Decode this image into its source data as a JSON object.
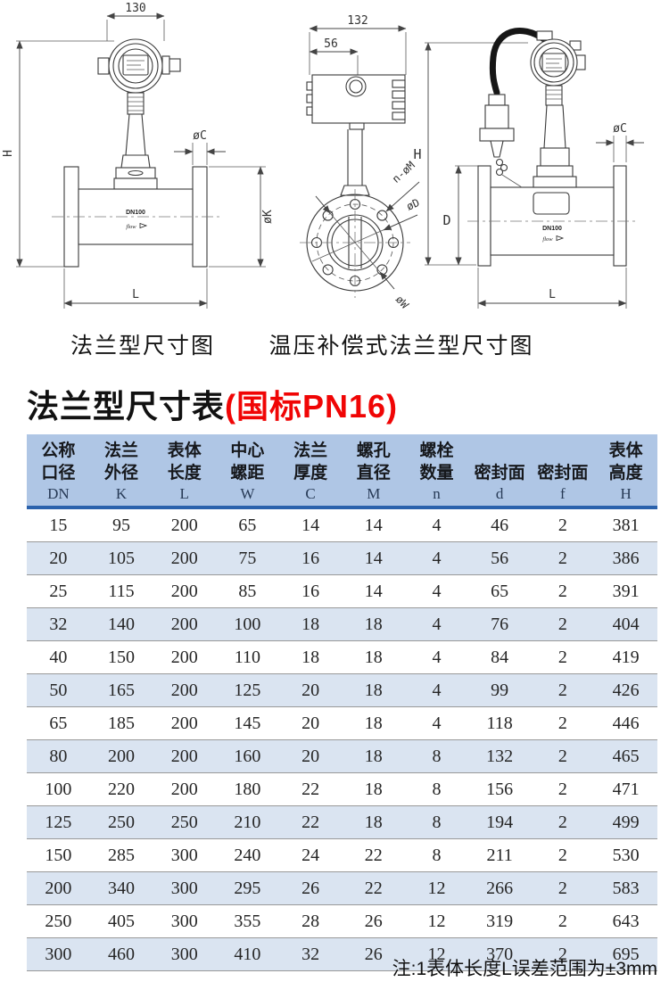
{
  "drawings": {
    "flange_view": {
      "caption": "法兰型尺寸图",
      "dim_width": "130",
      "dim_height": "H",
      "dim_flange_thickness": "øC",
      "dim_flange_od": "øK",
      "dim_length": "L",
      "body_label": "DN100",
      "flow_label": "flow"
    },
    "front_view": {
      "dim_width": "132",
      "dim_offset": "56",
      "dim_bolt_holes": "n-øM",
      "dim_seal_dia": "øD",
      "dim_bolt_circle": "øW"
    },
    "compensated_view": {
      "caption": "温压补偿式法兰型尺寸图",
      "dim_height": "H",
      "dim_body_height": "D",
      "dim_flange_thickness": "øC",
      "dim_length": "L",
      "body_label": "DN100",
      "flow_label": "flow"
    }
  },
  "table_section": {
    "title": "法兰型尺寸表",
    "title_highlight": "(国标PN16)",
    "note": "注:1表体长度L误差范围为±3mm",
    "columns": [
      {
        "line1": "公称",
        "line2": "口径",
        "symbol": "DN"
      },
      {
        "line1": "法兰",
        "line2": "外径",
        "symbol": "K"
      },
      {
        "line1": "表体",
        "line2": "长度",
        "symbol": "L"
      },
      {
        "line1": "中心",
        "line2": "螺距",
        "symbol": "W"
      },
      {
        "line1": "法兰",
        "line2": "厚度",
        "symbol": "C"
      },
      {
        "line1": "螺孔",
        "line2": "直径",
        "symbol": "M"
      },
      {
        "line1": "螺栓",
        "line2": "数量",
        "symbol": "n"
      },
      {
        "line1": "",
        "line2": "密封面",
        "symbol": "d"
      },
      {
        "line1": "",
        "line2": "密封面",
        "symbol": "f"
      },
      {
        "line1": "表体",
        "line2": "高度",
        "symbol": "H"
      }
    ],
    "rows": [
      [
        "15",
        "95",
        "200",
        "65",
        "14",
        "14",
        "4",
        "46",
        "2",
        "381"
      ],
      [
        "20",
        "105",
        "200",
        "75",
        "16",
        "14",
        "4",
        "56",
        "2",
        "386"
      ],
      [
        "25",
        "115",
        "200",
        "85",
        "16",
        "14",
        "4",
        "65",
        "2",
        "391"
      ],
      [
        "32",
        "140",
        "200",
        "100",
        "18",
        "18",
        "4",
        "76",
        "2",
        "404"
      ],
      [
        "40",
        "150",
        "200",
        "110",
        "18",
        "18",
        "4",
        "84",
        "2",
        "419"
      ],
      [
        "50",
        "165",
        "200",
        "125",
        "20",
        "18",
        "4",
        "99",
        "2",
        "426"
      ],
      [
        "65",
        "185",
        "200",
        "145",
        "20",
        "18",
        "4",
        "118",
        "2",
        "446"
      ],
      [
        "80",
        "200",
        "200",
        "160",
        "20",
        "18",
        "8",
        "132",
        "2",
        "465"
      ],
      [
        "100",
        "220",
        "200",
        "180",
        "22",
        "18",
        "8",
        "156",
        "2",
        "471"
      ],
      [
        "125",
        "250",
        "250",
        "210",
        "22",
        "18",
        "8",
        "194",
        "2",
        "499"
      ],
      [
        "150",
        "285",
        "300",
        "240",
        "24",
        "22",
        "8",
        "211",
        "2",
        "530"
      ],
      [
        "200",
        "340",
        "300",
        "295",
        "26",
        "22",
        "12",
        "266",
        "2",
        "583"
      ],
      [
        "250",
        "405",
        "300",
        "355",
        "28",
        "26",
        "12",
        "319",
        "2",
        "643"
      ],
      [
        "300",
        "460",
        "300",
        "410",
        "32",
        "26",
        "12",
        "370",
        "2",
        "695"
      ]
    ]
  },
  "colors": {
    "header_bg": "#afc6e5",
    "header_rule": "#2b62ac",
    "row_alt_bg": "#dae4f1",
    "row_separator": "#999999",
    "title_highlight": "#f00505"
  }
}
